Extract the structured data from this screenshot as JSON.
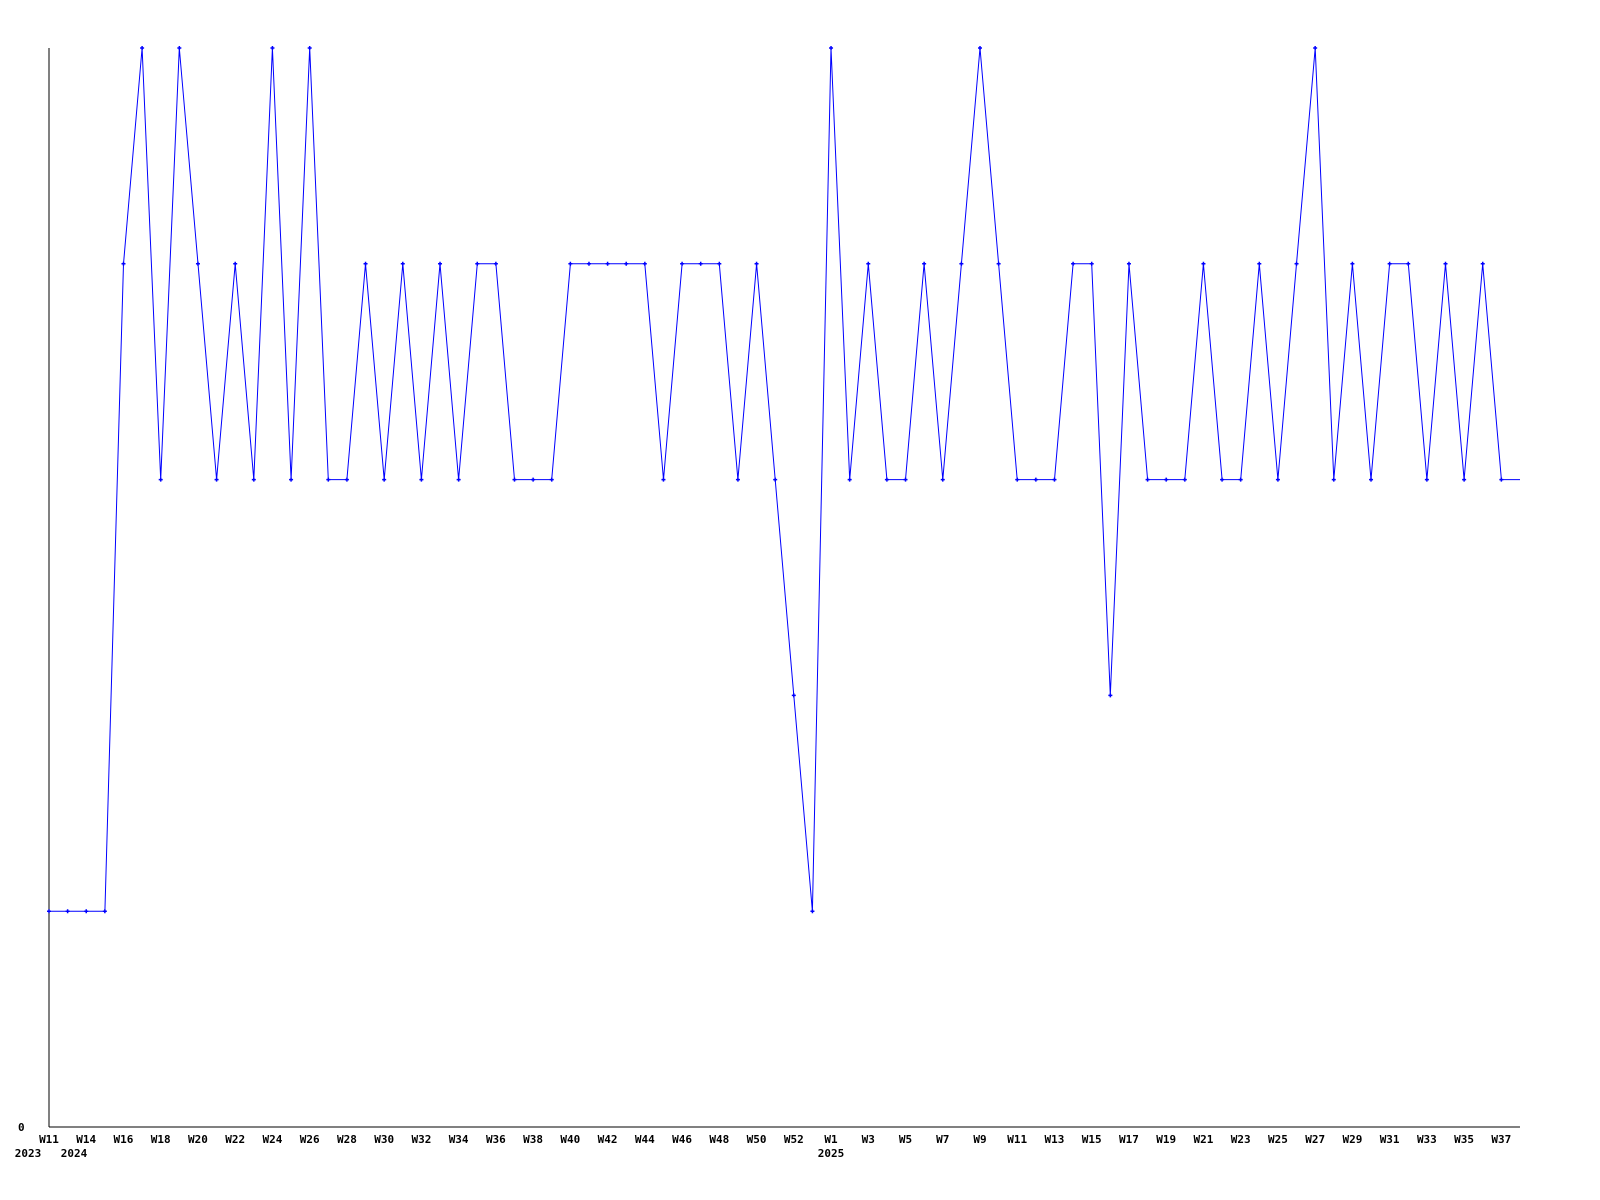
{
  "chart_data": {
    "type": "line",
    "title": "",
    "xlabel": "",
    "ylabel": "",
    "y_tick_labels": [
      "0"
    ],
    "ylim": [
      0,
      5
    ],
    "grid": false,
    "line_color": "#0000ff",
    "axis_color": "#000000",
    "x": [
      "2023 W11",
      "2024 W13",
      "2024 W14",
      "2024 W15",
      "2024 W16",
      "2024 W17",
      "2024 W18",
      "2024 W19",
      "2024 W20",
      "2024 W21",
      "2024 W22",
      "2024 W23",
      "2024 W24",
      "2024 W25",
      "2024 W26",
      "2024 W27",
      "2024 W28",
      "2024 W29",
      "2024 W30",
      "2024 W31",
      "2024 W32",
      "2024 W33",
      "2024 W34",
      "2024 W35",
      "2024 W36",
      "2024 W37",
      "2024 W38",
      "2024 W39",
      "2024 W40",
      "2024 W41",
      "2024 W42",
      "2024 W43",
      "2024 W44",
      "2024 W45",
      "2024 W46",
      "2024 W47",
      "2024 W48",
      "2024 W49",
      "2024 W50",
      "2024 W51",
      "2024 W52",
      "2024 W53",
      "2025 W1",
      "2025 W2",
      "2025 W3",
      "2025 W4",
      "2025 W5",
      "2025 W6",
      "2025 W7",
      "2025 W8",
      "2025 W9",
      "2025 W10",
      "2025 W11",
      "2025 W12",
      "2025 W13",
      "2025 W14",
      "2025 W15",
      "2025 W16",
      "2025 W17",
      "2025 W18",
      "2025 W19",
      "2025 W20",
      "2025 W21",
      "2025 W22",
      "2025 W23",
      "2025 W24",
      "2025 W25",
      "2025 W26",
      "2025 W27",
      "2025 W28",
      "2025 W29",
      "2025 W30",
      "2025 W31",
      "2025 W32",
      "2025 W33",
      "2025 W34",
      "2025 W35",
      "2025 W36",
      "2025 W37",
      "2025 W38"
    ],
    "values": [
      1,
      1,
      1,
      1,
      4,
      5,
      3,
      5,
      4,
      3,
      4,
      3,
      5,
      3,
      5,
      3,
      3,
      4,
      3,
      4,
      3,
      4,
      3,
      4,
      4,
      3,
      3,
      3,
      4,
      4,
      4,
      4,
      4,
      3,
      4,
      4,
      4,
      3,
      4,
      3,
      2,
      1,
      5,
      3,
      4,
      3,
      3,
      4,
      3,
      4,
      5,
      4,
      3,
      3,
      3,
      4,
      4,
      2,
      4,
      3,
      3,
      3,
      4,
      3,
      3,
      4,
      3,
      4,
      5,
      3,
      4,
      3,
      4,
      4,
      3,
      4,
      3,
      4,
      3,
      3
    ],
    "x_tick_labels": [
      "W11",
      "W14",
      "W16",
      "W18",
      "W20",
      "W22",
      "W24",
      "W26",
      "W28",
      "W30",
      "W32",
      "W34",
      "W36",
      "W38",
      "W40",
      "W42",
      "W44",
      "W46",
      "W48",
      "W50",
      "W52",
      "W1",
      "W3",
      "W5",
      "W7",
      "W9",
      "W11",
      "W13",
      "W15",
      "W17",
      "W19",
      "W21",
      "W23",
      "W25",
      "W27",
      "W29",
      "W31",
      "W33",
      "W35",
      "W37"
    ],
    "year_labels": [
      "2023",
      "2024",
      "2025"
    ]
  }
}
